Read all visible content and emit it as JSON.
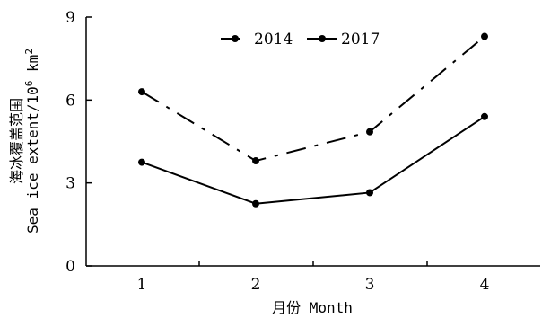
{
  "chart_data": {
    "type": "line",
    "x": [
      1,
      2,
      3,
      4
    ],
    "xticks": [
      "1",
      "2",
      "3",
      "4"
    ],
    "yticks": [
      "0",
      "3",
      "6",
      "9"
    ],
    "ylim": [
      0,
      9
    ],
    "xlabel": "月份 Month",
    "ylabel_line1": "海冰覆盖范围",
    "ylabel_line2_prefix": "Sea ice extent/10",
    "ylabel_sup": "6",
    "ylabel_line2_suffix": " km",
    "ylabel_sup2": "2",
    "legend_position": "top",
    "series": [
      {
        "name": "2014",
        "values": [
          6.3,
          3.8,
          4.85,
          8.3
        ],
        "line_style": "dash-dot",
        "color": "#000000"
      },
      {
        "name": "2017",
        "values": [
          3.75,
          2.25,
          2.65,
          5.4
        ],
        "line_style": "solid",
        "color": "#000000"
      }
    ]
  }
}
